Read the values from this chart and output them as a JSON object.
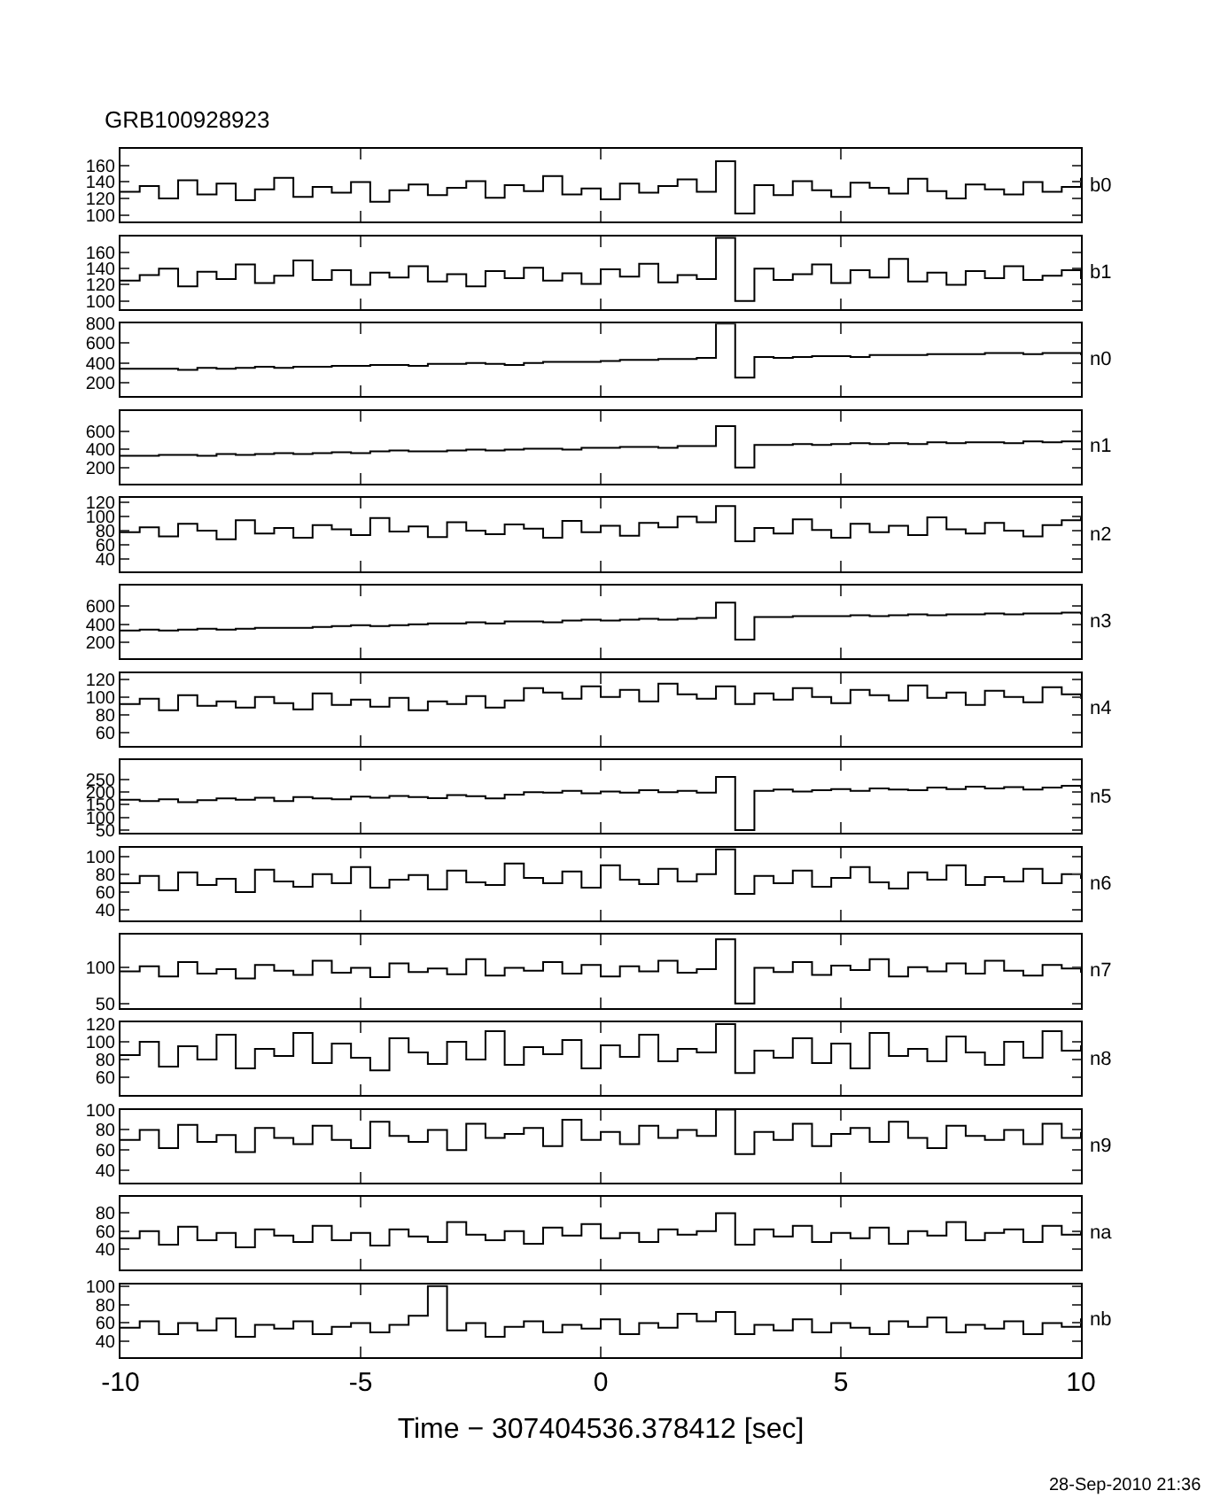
{
  "chart_data": [
    {
      "type": "step",
      "title": "GRB100928923",
      "x": [
        -10,
        -9.6,
        -9.2,
        -8.8,
        -8.4,
        -8,
        -7.6,
        -7.2,
        -6.8,
        -6.4,
        -6,
        -5.6,
        -5.2,
        -4.8,
        -4.4,
        -4,
        -3.6,
        -3.2,
        -2.8,
        -2.4,
        -2,
        -1.6,
        -1.2,
        -0.8,
        -0.4,
        0,
        0.4,
        0.8,
        1.2,
        1.6,
        2,
        2.4,
        2.8,
        3.2,
        3.6,
        4,
        4.4,
        4.8,
        5.2,
        5.6,
        6,
        6.4,
        6.8,
        7.2,
        7.6,
        8,
        8.4,
        8.8,
        9.2,
        9.6,
        10
      ],
      "xlim": [
        -10,
        10
      ],
      "xticks": [
        -10,
        -5,
        0,
        5,
        10
      ],
      "ylim": [
        92,
        180
      ],
      "yticks": [
        100,
        120,
        140,
        160
      ],
      "tick_labels": "y",
      "series": [
        {
          "name": "b0",
          "color": "#000000",
          "values": [
            128,
            135,
            120,
            142,
            125,
            138,
            118,
            131,
            145,
            122,
            134,
            127,
            140,
            116,
            130,
            137,
            124,
            133,
            141,
            121,
            136,
            129,
            147,
            125,
            132,
            119,
            138,
            127,
            135,
            143,
            128,
            165,
            102,
            136,
            124,
            141,
            130,
            122,
            139,
            133,
            126,
            144,
            129,
            120,
            137,
            131,
            125,
            140,
            128,
            134,
            145
          ]
        }
      ]
    },
    {
      "type": "step",
      "x": [
        -10,
        -9.6,
        -9.2,
        -8.8,
        -8.4,
        -8,
        -7.6,
        -7.2,
        -6.8,
        -6.4,
        -6,
        -5.6,
        -5.2,
        -4.8,
        -4.4,
        -4,
        -3.6,
        -3.2,
        -2.8,
        -2.4,
        -2,
        -1.6,
        -1.2,
        -0.8,
        -0.4,
        0,
        0.4,
        0.8,
        1.2,
        1.6,
        2,
        2.4,
        2.8,
        3.2,
        3.6,
        4,
        4.4,
        4.8,
        5.2,
        5.6,
        6,
        6.4,
        6.8,
        7.2,
        7.6,
        8,
        8.4,
        8.8,
        9.2,
        9.6,
        10
      ],
      "xlim": [
        -10,
        10
      ],
      "xticks": [
        -10,
        -5,
        0,
        5,
        10
      ],
      "ylim": [
        90,
        180
      ],
      "yticks": [
        100,
        120,
        140,
        160
      ],
      "tick_labels": "y",
      "series": [
        {
          "name": "b1",
          "color": "#000000",
          "values": [
            125,
            132,
            140,
            118,
            136,
            127,
            145,
            122,
            131,
            150,
            126,
            138,
            120,
            135,
            129,
            143,
            124,
            133,
            118,
            137,
            128,
            141,
            125,
            134,
            121,
            139,
            130,
            146,
            123,
            132,
            127,
            178,
            100,
            140,
            126,
            133,
            145,
            122,
            138,
            129,
            152,
            124,
            135,
            120,
            137,
            128,
            143,
            126,
            131,
            138,
            127
          ]
        }
      ]
    },
    {
      "type": "step",
      "x": [
        -10,
        -9.6,
        -9.2,
        -8.8,
        -8.4,
        -8,
        -7.6,
        -7.2,
        -6.8,
        -6.4,
        -6,
        -5.6,
        -5.2,
        -4.8,
        -4.4,
        -4,
        -3.6,
        -3.2,
        -2.8,
        -2.4,
        -2,
        -1.6,
        -1.2,
        -0.8,
        -0.4,
        0,
        0.4,
        0.8,
        1.2,
        1.6,
        2,
        2.4,
        2.8,
        3.2,
        3.6,
        4,
        4.4,
        4.8,
        5.2,
        5.6,
        6,
        6.4,
        6.8,
        7.2,
        7.6,
        8,
        8.4,
        8.8,
        9.2,
        9.6,
        10
      ],
      "xlim": [
        -10,
        10
      ],
      "xticks": [
        -10,
        -5,
        0,
        5,
        10
      ],
      "ylim": [
        60,
        800
      ],
      "yticks": [
        200,
        400,
        600,
        800
      ],
      "tick_labels": "y",
      "series": [
        {
          "name": "n0",
          "color": "#000000",
          "values": [
            340,
            340,
            340,
            330,
            350,
            340,
            350,
            360,
            350,
            360,
            360,
            370,
            370,
            380,
            380,
            370,
            390,
            390,
            400,
            390,
            380,
            400,
            410,
            410,
            410,
            420,
            430,
            430,
            440,
            440,
            450,
            800,
            250,
            460,
            450,
            460,
            470,
            470,
            460,
            480,
            480,
            480,
            490,
            490,
            490,
            500,
            500,
            490,
            500,
            500,
            480
          ]
        }
      ]
    },
    {
      "type": "step",
      "x": [
        -10,
        -9.6,
        -9.2,
        -8.8,
        -8.4,
        -8,
        -7.6,
        -7.2,
        -6.8,
        -6.4,
        -6,
        -5.6,
        -5.2,
        -4.8,
        -4.4,
        -4,
        -3.6,
        -3.2,
        -2.8,
        -2.4,
        -2,
        -1.6,
        -1.2,
        -0.8,
        -0.4,
        0,
        0.4,
        0.8,
        1.2,
        1.6,
        2,
        2.4,
        2.8,
        3.2,
        3.6,
        4,
        4.4,
        4.8,
        5.2,
        5.6,
        6,
        6.4,
        6.8,
        7.2,
        7.6,
        8,
        8.4,
        8.8,
        9.2,
        9.6,
        10
      ],
      "xlim": [
        -10,
        10
      ],
      "xticks": [
        -10,
        -5,
        0,
        5,
        10
      ],
      "ylim": [
        20,
        830
      ],
      "yticks": [
        200,
        400,
        600
      ],
      "tick_labels": "y",
      "series": [
        {
          "name": "n1",
          "color": "#000000",
          "values": [
            330,
            330,
            340,
            340,
            330,
            350,
            340,
            350,
            360,
            350,
            360,
            370,
            360,
            380,
            390,
            380,
            380,
            390,
            400,
            390,
            400,
            410,
            410,
            400,
            420,
            420,
            430,
            430,
            420,
            440,
            440,
            660,
            200,
            450,
            450,
            460,
            450,
            460,
            470,
            460,
            470,
            460,
            480,
            470,
            480,
            480,
            470,
            490,
            480,
            490,
            490
          ]
        }
      ]
    },
    {
      "type": "step",
      "x": [
        -10,
        -9.6,
        -9.2,
        -8.8,
        -8.4,
        -8,
        -7.6,
        -7.2,
        -6.8,
        -6.4,
        -6,
        -5.6,
        -5.2,
        -4.8,
        -4.4,
        -4,
        -3.6,
        -3.2,
        -2.8,
        -2.4,
        -2,
        -1.6,
        -1.2,
        -0.8,
        -0.4,
        0,
        0.4,
        0.8,
        1.2,
        1.6,
        2,
        2.4,
        2.8,
        3.2,
        3.6,
        4,
        4.4,
        4.8,
        5.2,
        5.6,
        6,
        6.4,
        6.8,
        7.2,
        7.6,
        8,
        8.4,
        8.8,
        9.2,
        9.6,
        10
      ],
      "xlim": [
        -10,
        10
      ],
      "xticks": [
        -10,
        -5,
        0,
        5,
        10
      ],
      "ylim": [
        23,
        126
      ],
      "yticks": [
        40,
        60,
        80,
        100,
        120
      ],
      "tick_labels": "y",
      "series": [
        {
          "name": "n2",
          "color": "#000000",
          "values": [
            78,
            85,
            72,
            90,
            80,
            68,
            95,
            76,
            84,
            70,
            88,
            82,
            74,
            98,
            79,
            86,
            71,
            92,
            80,
            75,
            89,
            83,
            70,
            94,
            78,
            87,
            73,
            91,
            85,
            100,
            92,
            115,
            65,
            84,
            76,
            96,
            81,
            70,
            90,
            78,
            87,
            74,
            99,
            82,
            76,
            91,
            80,
            72,
            88,
            95,
            100
          ]
        }
      ]
    },
    {
      "type": "step",
      "x": [
        -10,
        -9.6,
        -9.2,
        -8.8,
        -8.4,
        -8,
        -7.6,
        -7.2,
        -6.8,
        -6.4,
        -6,
        -5.6,
        -5.2,
        -4.8,
        -4.4,
        -4,
        -3.6,
        -3.2,
        -2.8,
        -2.4,
        -2,
        -1.6,
        -1.2,
        -0.8,
        -0.4,
        0,
        0.4,
        0.8,
        1.2,
        1.6,
        2,
        2.4,
        2.8,
        3.2,
        3.6,
        4,
        4.4,
        4.8,
        5.2,
        5.6,
        6,
        6.4,
        6.8,
        7.2,
        7.6,
        8,
        8.4,
        8.8,
        9.2,
        9.6,
        10
      ],
      "xlim": [
        -10,
        10
      ],
      "xticks": [
        -10,
        -5,
        0,
        5,
        10
      ],
      "ylim": [
        20,
        830
      ],
      "yticks": [
        200,
        400,
        600
      ],
      "tick_labels": "y",
      "series": [
        {
          "name": "n3",
          "color": "#000000",
          "values": [
            330,
            340,
            330,
            340,
            350,
            340,
            350,
            360,
            360,
            360,
            370,
            380,
            390,
            380,
            390,
            400,
            410,
            410,
            420,
            410,
            430,
            430,
            420,
            440,
            450,
            440,
            450,
            460,
            450,
            460,
            470,
            640,
            230,
            480,
            480,
            490,
            490,
            490,
            500,
            490,
            500,
            510,
            500,
            510,
            510,
            520,
            510,
            520,
            520,
            530,
            510
          ]
        }
      ]
    },
    {
      "type": "step",
      "x": [
        -10,
        -9.6,
        -9.2,
        -8.8,
        -8.4,
        -8,
        -7.6,
        -7.2,
        -6.8,
        -6.4,
        -6,
        -5.6,
        -5.2,
        -4.8,
        -4.4,
        -4,
        -3.6,
        -3.2,
        -2.8,
        -2.4,
        -2,
        -1.6,
        -1.2,
        -0.8,
        -0.4,
        0,
        0.4,
        0.8,
        1.2,
        1.6,
        2,
        2.4,
        2.8,
        3.2,
        3.6,
        4,
        4.4,
        4.8,
        5.2,
        5.6,
        6,
        6.4,
        6.8,
        7.2,
        7.6,
        8,
        8.4,
        8.8,
        9.2,
        9.6,
        10
      ],
      "xlim": [
        -10,
        10
      ],
      "xticks": [
        -10,
        -5,
        0,
        5,
        10
      ],
      "ylim": [
        45,
        127
      ],
      "yticks": [
        60,
        80,
        100,
        120
      ],
      "tick_labels": "y",
      "series": [
        {
          "name": "n4",
          "color": "#000000",
          "values": [
            92,
            98,
            85,
            102,
            90,
            95,
            88,
            100,
            93,
            86,
            104,
            91,
            97,
            89,
            99,
            85,
            95,
            92,
            101,
            88,
            96,
            110,
            105,
            98,
            112,
            100,
            108,
            95,
            115,
            103,
            98,
            112,
            92,
            104,
            97,
            110,
            100,
            93,
            108,
            102,
            96,
            113,
            99,
            105,
            91,
            107,
            100,
            94,
            111,
            103,
            98
          ]
        }
      ]
    },
    {
      "type": "step",
      "x": [
        -10,
        -9.6,
        -9.2,
        -8.8,
        -8.4,
        -8,
        -7.6,
        -7.2,
        -6.8,
        -6.4,
        -6,
        -5.6,
        -5.2,
        -4.8,
        -4.4,
        -4,
        -3.6,
        -3.2,
        -2.8,
        -2.4,
        -2,
        -1.6,
        -1.2,
        -0.8,
        -0.4,
        0,
        0.4,
        0.8,
        1.2,
        1.6,
        2,
        2.4,
        2.8,
        3.2,
        3.6,
        4,
        4.4,
        4.8,
        5.2,
        5.6,
        6,
        6.4,
        6.8,
        7.2,
        7.6,
        8,
        8.4,
        8.8,
        9.2,
        9.6,
        10
      ],
      "xlim": [
        -10,
        10
      ],
      "xticks": [
        -10,
        -5,
        0,
        5,
        10
      ],
      "ylim": [
        38,
        326
      ],
      "yticks": [
        50,
        100,
        150,
        200,
        250
      ],
      "tick_labels": "y",
      "series": [
        {
          "name": "n5",
          "color": "#000000",
          "values": [
            170,
            165,
            172,
            160,
            168,
            175,
            170,
            178,
            165,
            180,
            175,
            172,
            182,
            178,
            185,
            180,
            176,
            188,
            184,
            175,
            190,
            200,
            198,
            205,
            195,
            202,
            198,
            208,
            200,
            205,
            198,
            260,
            50,
            205,
            210,
            202,
            208,
            212,
            205,
            215,
            210,
            208,
            218,
            212,
            222,
            215,
            220,
            210,
            218,
            225,
            215
          ]
        }
      ]
    },
    {
      "type": "step",
      "x": [
        -10,
        -9.6,
        -9.2,
        -8.8,
        -8.4,
        -8,
        -7.6,
        -7.2,
        -6.8,
        -6.4,
        -6,
        -5.6,
        -5.2,
        -4.8,
        -4.4,
        -4,
        -3.6,
        -3.2,
        -2.8,
        -2.4,
        -2,
        -1.6,
        -1.2,
        -0.8,
        -0.4,
        0,
        0.4,
        0.8,
        1.2,
        1.6,
        2,
        2.4,
        2.8,
        3.2,
        3.6,
        4,
        4.4,
        4.8,
        5.2,
        5.6,
        6,
        6.4,
        6.8,
        7.2,
        7.6,
        8,
        8.4,
        8.8,
        9.2,
        9.6,
        10
      ],
      "xlim": [
        -10,
        10
      ],
      "xticks": [
        -10,
        -5,
        0,
        5,
        10
      ],
      "ylim": [
        28,
        110
      ],
      "yticks": [
        40,
        60,
        80,
        100
      ],
      "tick_labels": "y",
      "series": [
        {
          "name": "n6",
          "color": "#000000",
          "values": [
            70,
            78,
            62,
            82,
            68,
            75,
            60,
            85,
            72,
            66,
            80,
            70,
            88,
            65,
            74,
            79,
            63,
            84,
            71,
            68,
            92,
            76,
            70,
            83,
            65,
            90,
            74,
            69,
            86,
            72,
            80,
            108,
            58,
            78,
            70,
            84,
            66,
            76,
            88,
            71,
            64,
            82,
            74,
            90,
            68,
            77,
            72,
            86,
            70,
            80,
            75
          ]
        }
      ]
    },
    {
      "type": "step",
      "x": [
        -10,
        -9.6,
        -9.2,
        -8.8,
        -8.4,
        -8,
        -7.6,
        -7.2,
        -6.8,
        -6.4,
        -6,
        -5.6,
        -5.2,
        -4.8,
        -4.4,
        -4,
        -3.6,
        -3.2,
        -2.8,
        -2.4,
        -2,
        -1.6,
        -1.2,
        -0.8,
        -0.4,
        0,
        0.4,
        0.8,
        1.2,
        1.6,
        2,
        2.4,
        2.8,
        3.2,
        3.6,
        4,
        4.4,
        4.8,
        5.2,
        5.6,
        6,
        6.4,
        6.8,
        7.2,
        7.6,
        8,
        8.4,
        8.8,
        9.2,
        9.6,
        10
      ],
      "xlim": [
        -10,
        10
      ],
      "xticks": [
        -10,
        -5,
        0,
        5,
        10
      ],
      "ylim": [
        44,
        146
      ],
      "yticks": [
        50,
        100
      ],
      "tick_labels": "y",
      "series": [
        {
          "name": "n7",
          "color": "#000000",
          "values": [
            95,
            102,
            88,
            108,
            92,
            98,
            85,
            104,
            96,
            90,
            110,
            93,
            100,
            87,
            106,
            94,
            99,
            91,
            112,
            89,
            100,
            96,
            108,
            92,
            104,
            88,
            102,
            95,
            110,
            93,
            98,
            140,
            50,
            100,
            94,
            108,
            90,
            103,
            97,
            112,
            88,
            101,
            95,
            106,
            92,
            110,
            96,
            89,
            104,
            99,
            93
          ]
        }
      ]
    },
    {
      "type": "step",
      "x": [
        -10,
        -9.6,
        -9.2,
        -8.8,
        -8.4,
        -8,
        -7.6,
        -7.2,
        -6.8,
        -6.4,
        -6,
        -5.6,
        -5.2,
        -4.8,
        -4.4,
        -4,
        -3.6,
        -3.2,
        -2.8,
        -2.4,
        -2,
        -1.6,
        -1.2,
        -0.8,
        -0.4,
        0,
        0.4,
        0.8,
        1.2,
        1.6,
        2,
        2.4,
        2.8,
        3.2,
        3.6,
        4,
        4.4,
        4.8,
        5.2,
        5.6,
        6,
        6.4,
        6.8,
        7.2,
        7.6,
        8,
        8.4,
        8.8,
        9.2,
        9.6,
        10
      ],
      "xlim": [
        -10,
        10
      ],
      "xticks": [
        -10,
        -5,
        0,
        5,
        10
      ],
      "ylim": [
        40,
        122
      ],
      "yticks": [
        60,
        80,
        100,
        120
      ],
      "tick_labels": "y",
      "series": [
        {
          "name": "n8",
          "color": "#000000",
          "values": [
            85,
            100,
            72,
            95,
            80,
            108,
            70,
            92,
            84,
            110,
            76,
            98,
            82,
            68,
            104,
            88,
            75,
            100,
            80,
            112,
            74,
            94,
            86,
            102,
            70,
            96,
            83,
            108,
            78,
            92,
            88,
            120,
            65,
            90,
            82,
            104,
            76,
            98,
            70,
            110,
            84,
            92,
            78,
            106,
            88,
            74,
            100,
            82,
            112,
            90,
            96
          ]
        }
      ]
    },
    {
      "type": "step",
      "x": [
        -10,
        -9.6,
        -9.2,
        -8.8,
        -8.4,
        -8,
        -7.6,
        -7.2,
        -6.8,
        -6.4,
        -6,
        -5.6,
        -5.2,
        -4.8,
        -4.4,
        -4,
        -3.6,
        -3.2,
        -2.8,
        -2.4,
        -2,
        -1.6,
        -1.2,
        -0.8,
        -0.4,
        0,
        0.4,
        0.8,
        1.2,
        1.6,
        2,
        2.4,
        2.8,
        3.2,
        3.6,
        4,
        4.4,
        4.8,
        5.2,
        5.6,
        6,
        6.4,
        6.8,
        7.2,
        7.6,
        8,
        8.4,
        8.8,
        9.2,
        9.6,
        10
      ],
      "xlim": [
        -10,
        10
      ],
      "xticks": [
        -10,
        -5,
        0,
        5,
        10
      ],
      "ylim": [
        28,
        100
      ],
      "yticks": [
        40,
        60,
        80,
        100
      ],
      "tick_labels": "y",
      "series": [
        {
          "name": "n9",
          "color": "#000000",
          "values": [
            70,
            80,
            62,
            85,
            68,
            75,
            58,
            82,
            72,
            66,
            84,
            70,
            62,
            88,
            74,
            68,
            80,
            60,
            86,
            72,
            76,
            82,
            64,
            90,
            70,
            78,
            66,
            84,
            72,
            80,
            74,
            100,
            56,
            78,
            70,
            86,
            64,
            76,
            82,
            68,
            88,
            72,
            62,
            84,
            74,
            70,
            80,
            66,
            86,
            72,
            78
          ]
        }
      ]
    },
    {
      "type": "step",
      "x": [
        -10,
        -9.6,
        -9.2,
        -8.8,
        -8.4,
        -8,
        -7.6,
        -7.2,
        -6.8,
        -6.4,
        -6,
        -5.6,
        -5.2,
        -4.8,
        -4.4,
        -4,
        -3.6,
        -3.2,
        -2.8,
        -2.4,
        -2,
        -1.6,
        -1.2,
        -0.8,
        -0.4,
        0,
        0.4,
        0.8,
        1.2,
        1.6,
        2,
        2.4,
        2.8,
        3.2,
        3.6,
        4,
        4.4,
        4.8,
        5.2,
        5.6,
        6,
        6.4,
        6.8,
        7.2,
        7.6,
        8,
        8.4,
        8.8,
        9.2,
        9.6,
        10
      ],
      "xlim": [
        -10,
        10
      ],
      "xticks": [
        -10,
        -5,
        0,
        5,
        10
      ],
      "ylim": [
        17,
        98
      ],
      "yticks": [
        40,
        60,
        80
      ],
      "tick_labels": "y",
      "series": [
        {
          "name": "na",
          "color": "#000000",
          "values": [
            52,
            60,
            45,
            65,
            50,
            58,
            42,
            62,
            55,
            48,
            66,
            50,
            58,
            44,
            62,
            54,
            48,
            70,
            56,
            50,
            60,
            46,
            64,
            55,
            68,
            52,
            58,
            48,
            62,
            56,
            60,
            80,
            45,
            62,
            54,
            66,
            48,
            58,
            52,
            64,
            46,
            60,
            55,
            70,
            50,
            58,
            62,
            48,
            66,
            56,
            60
          ]
        }
      ]
    },
    {
      "type": "step",
      "xlabel": "Time − 307404536.378412 [sec]",
      "annotations": [
        "28-Sep-2010 21:36"
      ],
      "x": [
        -10,
        -9.6,
        -9.2,
        -8.8,
        -8.4,
        -8,
        -7.6,
        -7.2,
        -6.8,
        -6.4,
        -6,
        -5.6,
        -5.2,
        -4.8,
        -4.4,
        -4,
        -3.6,
        -3.2,
        -2.8,
        -2.4,
        -2,
        -1.6,
        -1.2,
        -0.8,
        -0.4,
        0,
        0.4,
        0.8,
        1.2,
        1.6,
        2,
        2.4,
        2.8,
        3.2,
        3.6,
        4,
        4.4,
        4.8,
        5.2,
        5.6,
        6,
        6.4,
        6.8,
        7.2,
        7.6,
        8,
        8.4,
        8.8,
        9.2,
        9.6,
        10
      ],
      "xlim": [
        -10,
        10
      ],
      "xticks": [
        -10,
        -5,
        0,
        5,
        10
      ],
      "ylim": [
        23,
        102
      ],
      "yticks": [
        40,
        60,
        80,
        100
      ],
      "series": [
        {
          "name": "nb",
          "color": "#000000",
          "values": [
            55,
            62,
            48,
            60,
            52,
            65,
            45,
            58,
            54,
            62,
            48,
            56,
            60,
            50,
            58,
            68,
            100,
            52,
            60,
            45,
            56,
            62,
            50,
            58,
            54,
            64,
            48,
            60,
            55,
            70,
            62,
            72,
            48,
            58,
            52,
            64,
            50,
            60,
            55,
            48,
            62,
            56,
            66,
            50,
            58,
            54,
            62,
            48,
            60,
            56,
            65
          ]
        }
      ]
    }
  ]
}
